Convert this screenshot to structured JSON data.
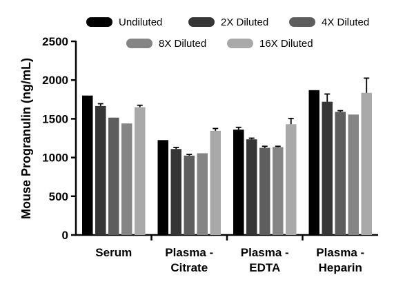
{
  "chart_data": {
    "type": "bar",
    "title": "",
    "xlabel": "",
    "ylabel": "Mouse Progranulin (ng/mL)",
    "ylim": [
      0,
      2500
    ],
    "yticks": [
      0,
      500,
      1000,
      1500,
      2000,
      2500
    ],
    "categories": [
      [
        "Serum"
      ],
      [
        "Plasma -",
        "Citrate"
      ],
      [
        "Plasma -",
        "EDTA"
      ],
      [
        "Plasma -",
        "Heparin"
      ]
    ],
    "legend_position": "top",
    "grid": false,
    "series": [
      {
        "name": "Undiluted",
        "color": "#000000",
        "values": [
          1800,
          1225,
          1360,
          1870
        ],
        "errors": [
          0,
          0,
          30,
          0
        ]
      },
      {
        "name": "2X Diluted",
        "color": "#363636",
        "values": [
          1665,
          1110,
          1235,
          1720
        ],
        "errors": [
          30,
          20,
          15,
          100
        ]
      },
      {
        "name": "4X Diluted",
        "color": "#5e5e5e",
        "values": [
          1515,
          1025,
          1125,
          1590
        ],
        "errors": [
          0,
          15,
          20,
          15
        ]
      },
      {
        "name": "8X Diluted",
        "color": "#858585",
        "values": [
          1440,
          1055,
          1135,
          1555
        ],
        "errors": [
          0,
          0,
          10,
          0
        ]
      },
      {
        "name": "16X Diluted",
        "color": "#a9a9a9",
        "values": [
          1650,
          1345,
          1430,
          1835
        ],
        "errors": [
          25,
          30,
          75,
          190
        ]
      }
    ]
  }
}
